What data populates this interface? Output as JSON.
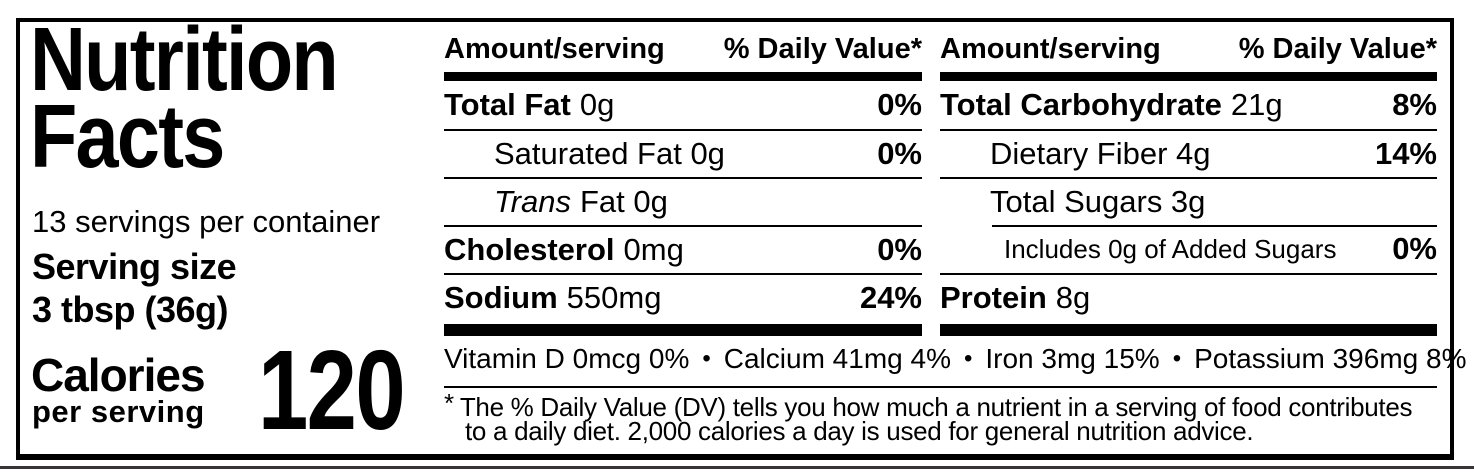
{
  "label": {
    "title_line1": "Nutrition",
    "title_line2": "Facts",
    "servings_per_container": "13 servings per container",
    "serving_size_label": "Serving size",
    "serving_size_value": "3 tbsp (36g)",
    "calories_label": "Calories",
    "calories_sublabel": "per serving",
    "calories_value": "120"
  },
  "panels": [
    {
      "header_amount": "Amount/serving",
      "header_dv": "% Daily Value*",
      "rows": [
        {
          "name": "Total Fat",
          "amount": "0g",
          "dv": "0%"
        },
        {
          "name": "Saturated Fat 0g",
          "dv": "0%"
        },
        {
          "name_italic": "Trans",
          "name_rest": "Fat 0g",
          "dv": ""
        },
        {
          "name": "Cholesterol",
          "amount": "0mg",
          "dv": "0%"
        },
        {
          "name": "Sodium",
          "amount": "550mg",
          "dv": "24%"
        }
      ]
    },
    {
      "header_amount": "Amount/serving",
      "header_dv": "% Daily Value*",
      "rows": [
        {
          "name": "Total Carbohydrate",
          "amount": "21g",
          "dv": "8%"
        },
        {
          "name": "Dietary Fiber 4g",
          "dv": "14%"
        },
        {
          "name": "Total Sugars 3g",
          "dv": ""
        },
        {
          "name": "Includes 0g of Added Sugars",
          "dv": "0%"
        },
        {
          "name": "Protein",
          "amount": "8g",
          "dv": ""
        }
      ]
    }
  ],
  "micronutrients": {
    "items": [
      "Vitamin D 0mcg 0%",
      "Calcium 41mg 4%",
      "Iron 3mg 15%",
      "Potassium 396mg 8%"
    ],
    "separator": "•"
  },
  "footnote": {
    "marker": "*",
    "line1": "The % Daily Value (DV) tells you how much a nutrient in a serving of food contributes",
    "line2": "to a daily diet. 2,000 calories a day is used for general nutrition advice."
  },
  "colors": {
    "ink": "#000000",
    "background": "#ffffff"
  }
}
